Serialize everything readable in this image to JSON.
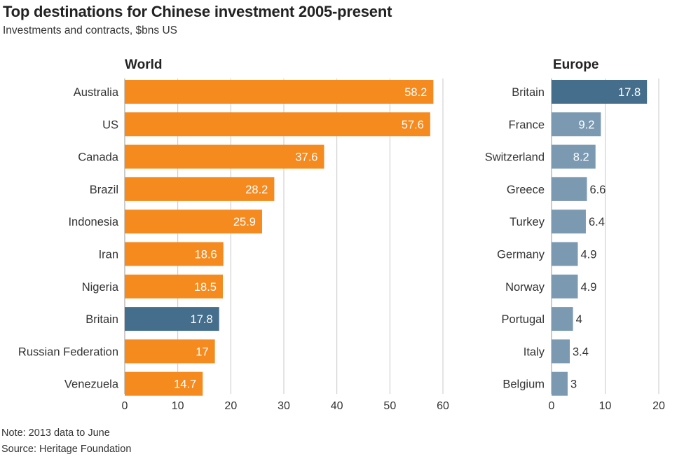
{
  "header": {
    "title": "Top destinations for Chinese investment 2005-present",
    "subtitle": "Investments and contracts, $bns US"
  },
  "footer": {
    "note": "Note: 2013 data to June",
    "source": "Source: Heritage Foundation"
  },
  "colors": {
    "orange": "#f58a1f",
    "highlight": "#456e8c",
    "europe": "#7b9ab2",
    "grid": "#c8c8c8"
  },
  "chart_data": [
    {
      "type": "bar",
      "orientation": "horizontal",
      "title": "World",
      "categories": [
        "Australia",
        "US",
        "Canada",
        "Brazil",
        "Indonesia",
        "Iran",
        "Nigeria",
        "Britain",
        "Russian Federation",
        "Venezuela"
      ],
      "values": [
        58.2,
        57.6,
        37.6,
        28.2,
        25.9,
        18.6,
        18.5,
        17.8,
        17,
        14.7
      ],
      "value_labels": [
        "58.2",
        "57.6",
        "37.6",
        "28.2",
        "25.9",
        "18.6",
        "18.5",
        "17.8",
        "17",
        "14.7"
      ],
      "highlight": "Britain",
      "xlim": [
        0,
        60
      ],
      "xticks": [
        0,
        10,
        20,
        30,
        40,
        50,
        60
      ],
      "grid": true
    },
    {
      "type": "bar",
      "orientation": "horizontal",
      "title": "Europe",
      "categories": [
        "Britain",
        "France",
        "Switzerland",
        "Greece",
        "Turkey",
        "Germany",
        "Norway",
        "Portugal",
        "Italy",
        "Belgium"
      ],
      "values": [
        17.8,
        9.2,
        8.2,
        6.6,
        6.4,
        4.9,
        4.9,
        4,
        3.4,
        3
      ],
      "value_labels": [
        "17.8",
        "9.2",
        "8.2",
        "6.6",
        "6.4",
        "4.9",
        "4.9",
        "4",
        "3.4",
        "3"
      ],
      "highlight": "Britain",
      "xlim": [
        0,
        20
      ],
      "xticks": [
        0,
        10,
        20
      ],
      "grid": true
    }
  ]
}
